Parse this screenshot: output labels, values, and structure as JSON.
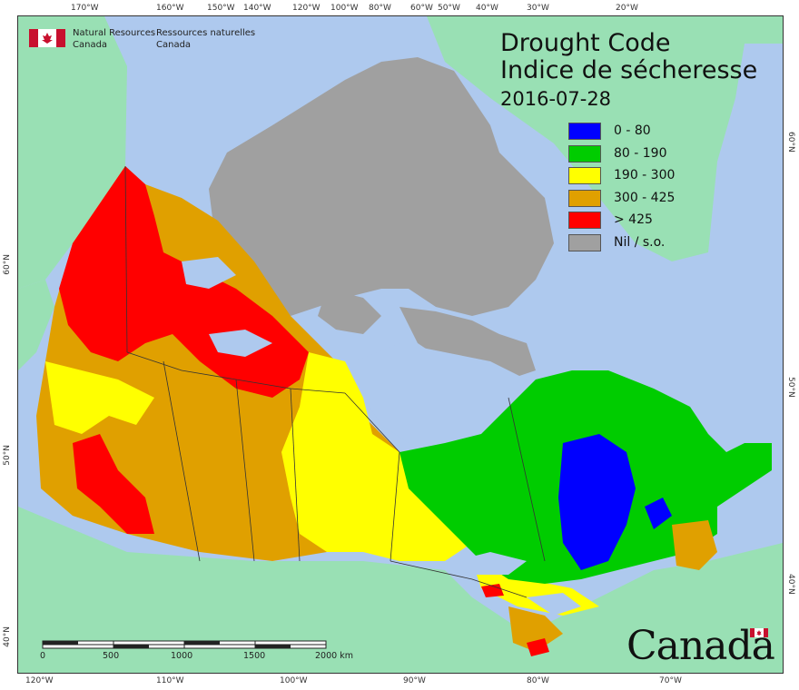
{
  "map": {
    "title_line1": "Drought Code",
    "title_line2": "Indice de sécheresse",
    "date": "2016-07-28",
    "agency_en_line1": "Natural Resources",
    "agency_en_line2": "Canada",
    "agency_fr_line1": "Ressources naturelles",
    "agency_fr_line2": "Canada",
    "wordmark": "Canada",
    "legend": [
      {
        "label": "0 - 80",
        "color": "#0000ff"
      },
      {
        "label": "80 - 190",
        "color": "#00cc00"
      },
      {
        "label": "190 - 300",
        "color": "#ffff00"
      },
      {
        "label": "300 - 425",
        "color": "#e0a000"
      },
      {
        "label": "> 425",
        "color": "#ff0000"
      },
      {
        "label": "Nil / s.o.",
        "color": "#a0a0a0"
      }
    ],
    "scale": {
      "labels": [
        "0",
        "500",
        "1000",
        "1500",
        "2000  km"
      ]
    },
    "ticks_top": [
      "170°W",
      "160°W",
      "150°W",
      "140°W",
      "120°W",
      "100°W",
      "80°W",
      "60°W",
      "50°W",
      "40°W",
      "30°W",
      "20°W"
    ],
    "ticks_bottom": [
      "120°W",
      "110°W",
      "100°W",
      "90°W",
      "80°W",
      "70°W"
    ],
    "ticks_left": [
      "60°N",
      "50°N",
      "40°N"
    ],
    "ticks_right": [
      "60°N",
      "50°N",
      "40°N"
    ],
    "colors": {
      "water": "#aec9ee",
      "land_other": "#99e0b4",
      "nodata": "#a0a0a0"
    }
  }
}
